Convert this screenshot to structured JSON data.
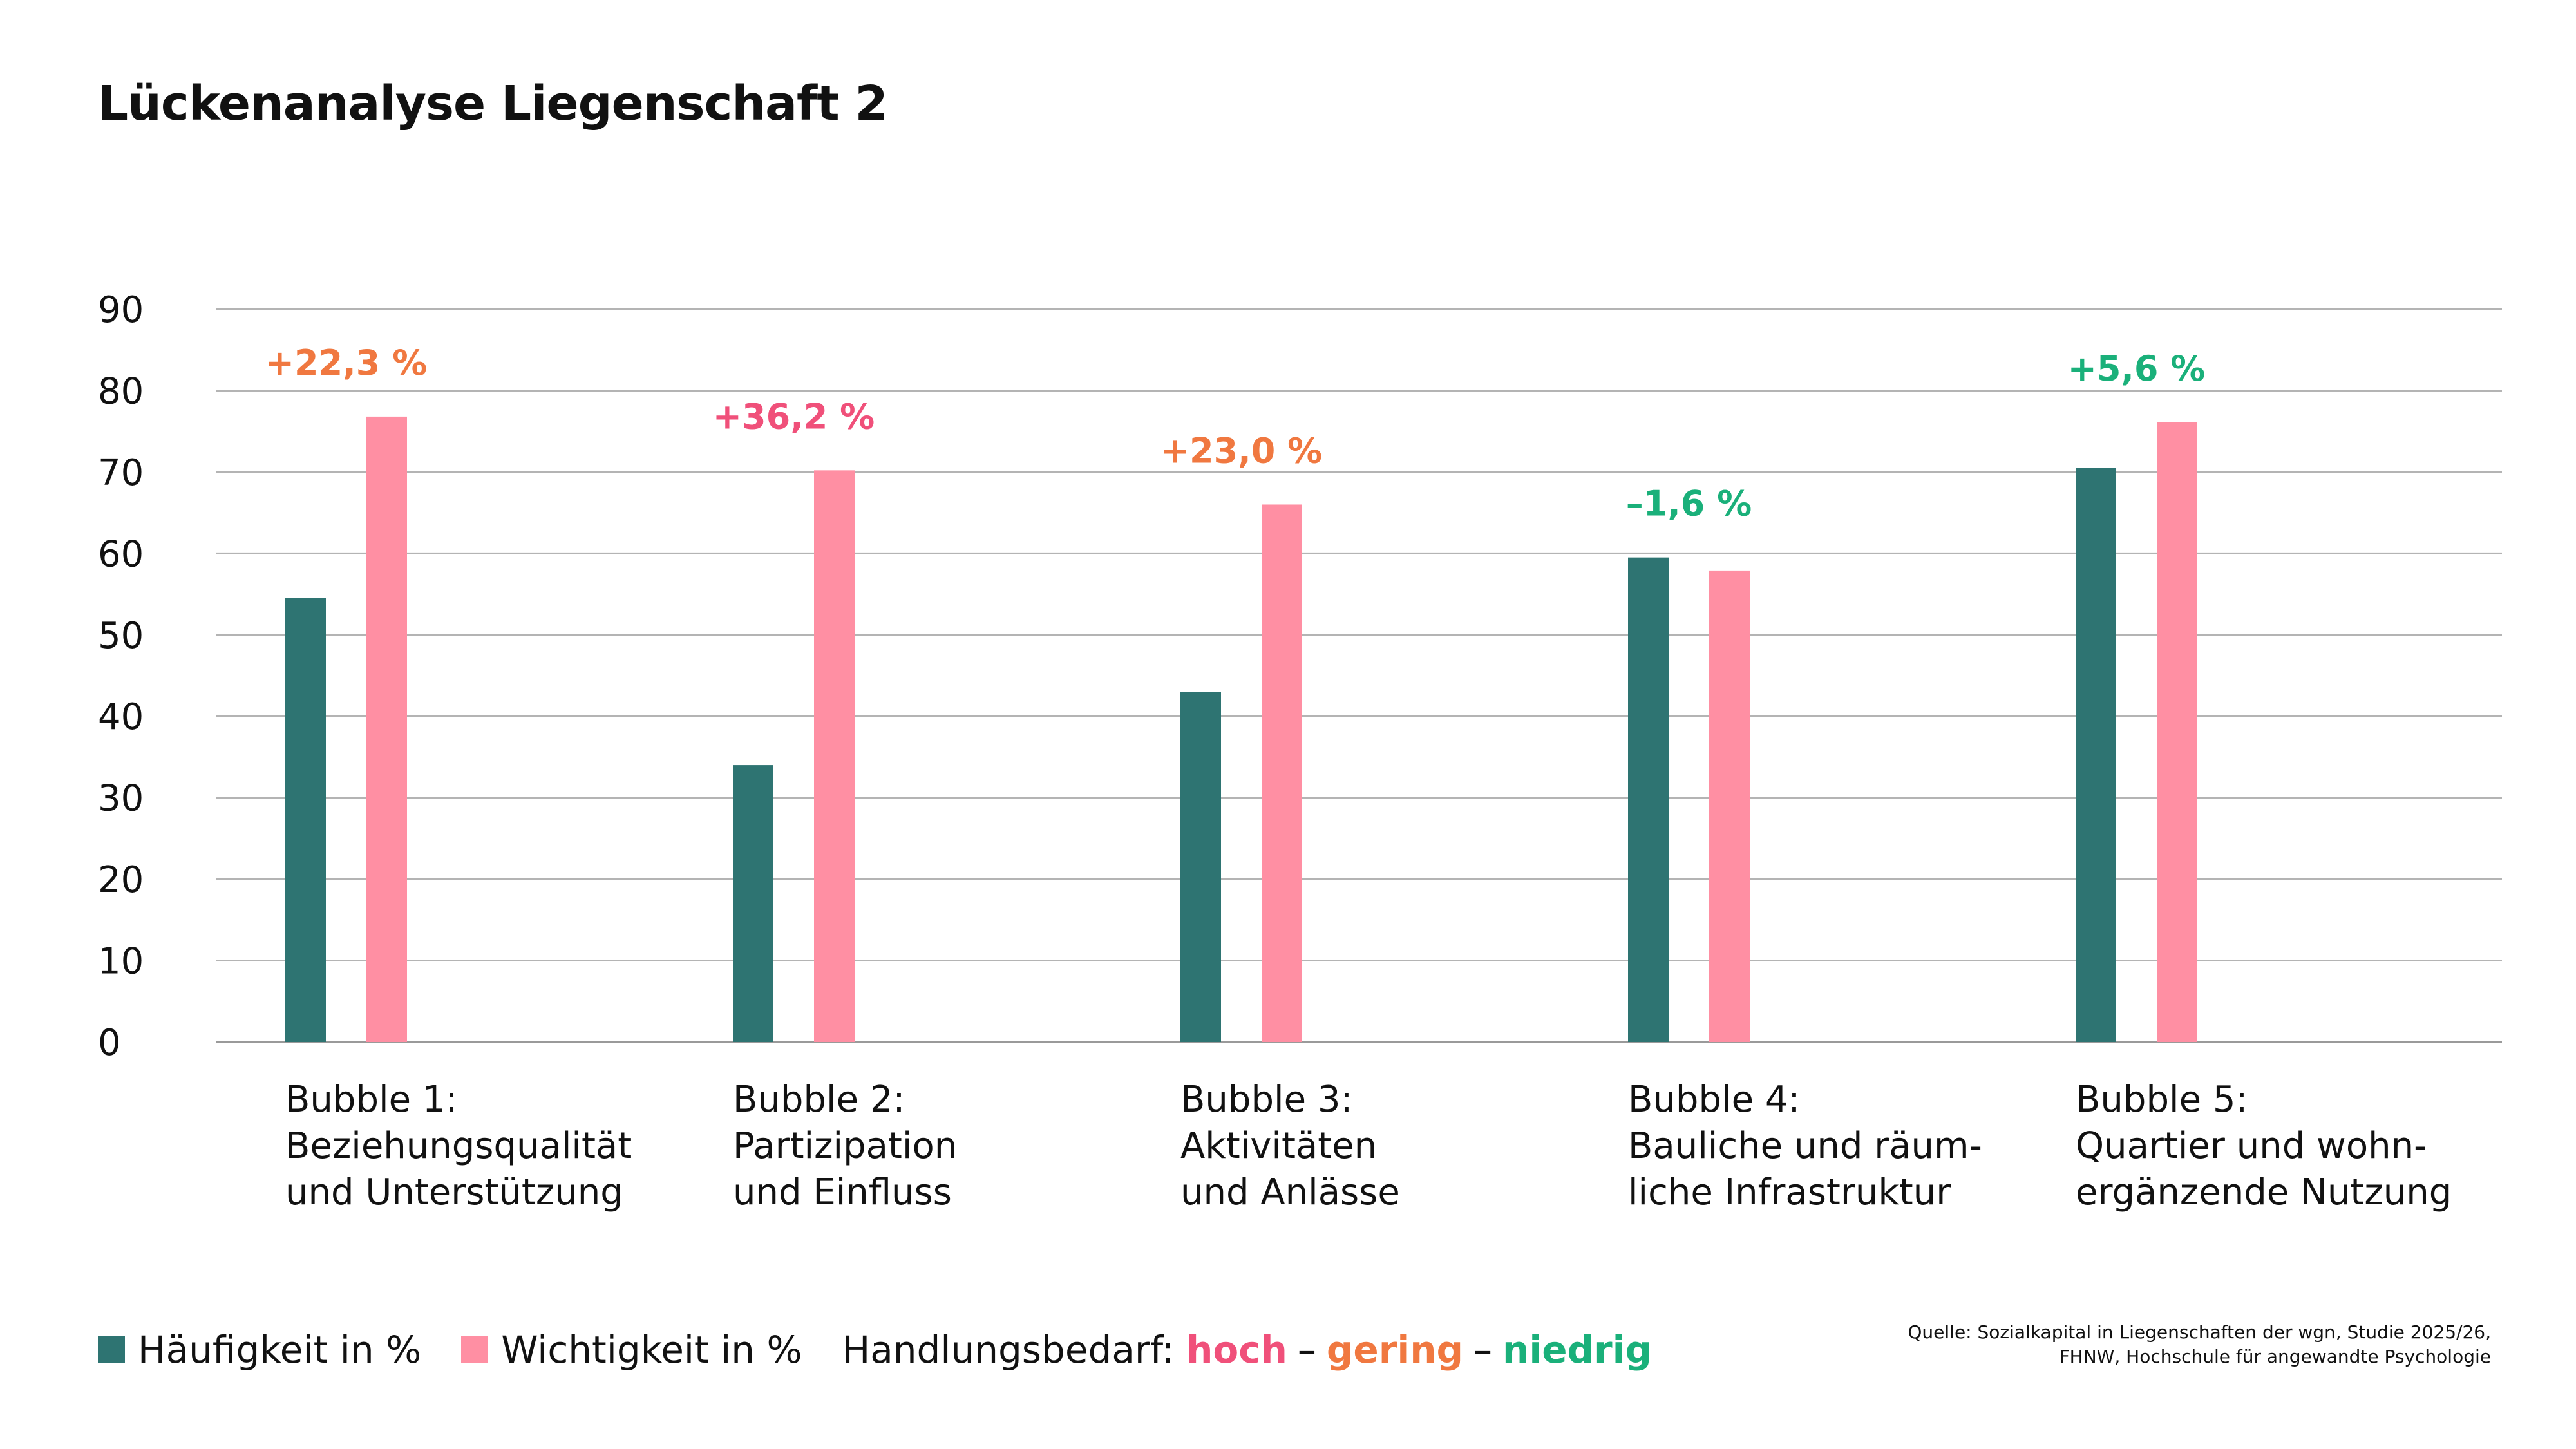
{
  "chart_data": {
    "type": "bar",
    "title": "Lückenanalyse Liegenschaft 2",
    "categories": [
      [
        "Bubble 1:",
        "Beziehungsqualität",
        "und Unterstützung"
      ],
      [
        "Bubble 2:",
        "Partizipation",
        "und Einfluss"
      ],
      [
        "Bubble 3:",
        "Aktivitäten",
        "und Anlässe"
      ],
      [
        "Bubble 4:",
        "Bauliche und räum-",
        "liche Infrastruktur"
      ],
      [
        "Bubble 5:",
        "Quartier und wohn-",
        "ergänzende Nutzung"
      ]
    ],
    "series": [
      {
        "name": "Häufigkeit in %",
        "color": "#2e7472",
        "values": [
          54.5,
          34.0,
          43.0,
          59.5,
          70.5
        ]
      },
      {
        "name": "Wichtigkeit in %",
        "color": "#ff8fa3",
        "values": [
          76.8,
          70.2,
          66.0,
          57.9,
          76.1
        ]
      }
    ],
    "gap_labels": [
      {
        "text": "+22,3 %",
        "level": "gering"
      },
      {
        "text": "+36,2 %",
        "level": "hoch"
      },
      {
        "text": "+23,0 %",
        "level": "gering"
      },
      {
        "text": "–1,6 %",
        "level": "niedrig"
      },
      {
        "text": "+5,6 %",
        "level": "niedrig"
      }
    ],
    "ylim": [
      0,
      90
    ],
    "yticks": [
      0,
      10,
      20,
      30,
      40,
      50,
      60,
      70,
      80,
      90
    ],
    "grid": true,
    "legend_position": "bottom-left"
  },
  "legend": {
    "handlungsbedarf_label": "Handlungsbedarf:",
    "levels": [
      {
        "key": "hoch",
        "label": "hoch",
        "color": "#f0507a"
      },
      {
        "key": "gering",
        "label": "gering",
        "color": "#f07840"
      },
      {
        "key": "niedrig",
        "label": "niedrig",
        "color": "#1ab07a"
      }
    ],
    "separator": "–"
  },
  "source": {
    "line1": "Quelle: Sozialkapital in Liegenschaften der wgn, Studie 2025/26,",
    "line2": "FHNW, Hochschule für angewandte Psychologie"
  }
}
